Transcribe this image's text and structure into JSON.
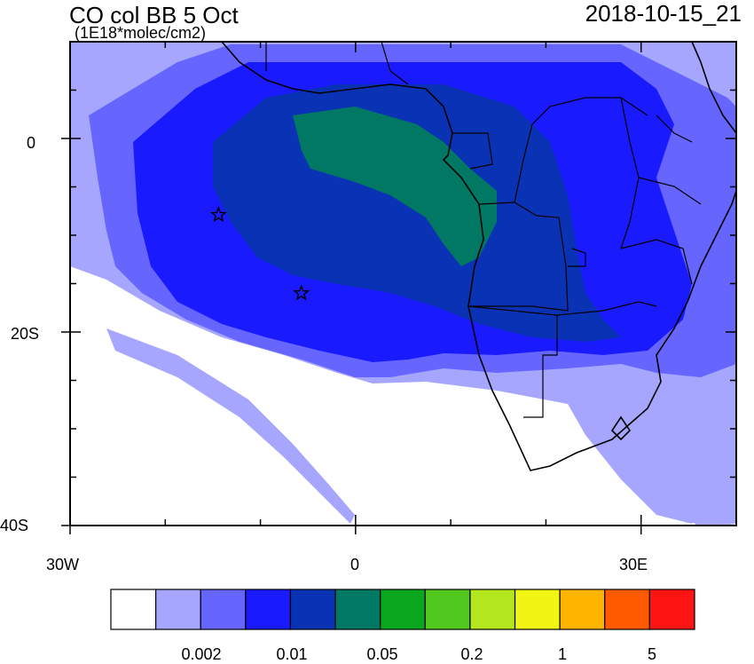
{
  "map": {
    "title": "CO col BB 5 Oct",
    "units": "(1E18*molec/cm2)",
    "timestamp": "2018-10-15_21",
    "lon_range": [
      -30,
      40
    ],
    "lat_range": [
      -40,
      10
    ],
    "x_tick_labels": [
      "30W",
      "0",
      "30E"
    ],
    "y_tick_labels": [
      "0",
      "20S",
      "40S"
    ],
    "markers": [
      {
        "type": "star",
        "lon": -14.4,
        "lat": -7.9
      },
      {
        "type": "star",
        "lon": -5.7,
        "lat": -16.0
      }
    ]
  },
  "colorbar": {
    "colors": [
      "#ffffff",
      "#a6a6ff",
      "#6666ff",
      "#1a1aff",
      "#0a32b4",
      "#007864",
      "#0aa61e",
      "#50c81e",
      "#b4e61e",
      "#f0f514",
      "#ffb400",
      "#ff5a00",
      "#ff1414"
    ],
    "labels": [
      "0.002",
      "0.01",
      "0.05",
      "0.2",
      "1",
      "5"
    ]
  }
}
